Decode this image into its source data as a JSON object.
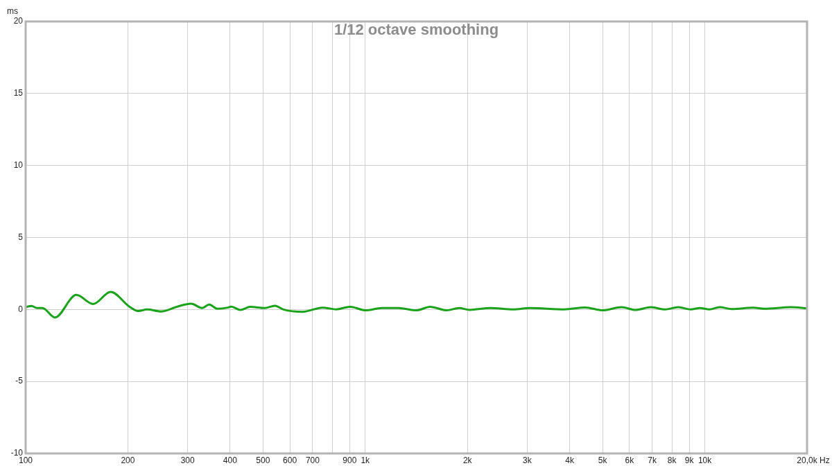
{
  "chart_data": {
    "type": "line",
    "title": "1/12 octave smoothing",
    "xlabel": "Hz",
    "ylabel": "ms",
    "log": "x",
    "grid": true,
    "legend": false,
    "marker": "none",
    "line_style": "solid",
    "xlim": [
      100,
      20000
    ],
    "ylim": [
      -10,
      20
    ],
    "xticks": [
      100,
      200,
      300,
      400,
      500,
      600,
      700,
      {
        "value": 800,
        "label": null
      },
      900,
      {
        "value": 1000,
        "label": "1k"
      },
      {
        "value": 2000,
        "label": "2k"
      },
      {
        "value": 3000,
        "label": "3k"
      },
      {
        "value": 4000,
        "label": "4k"
      },
      {
        "value": 5000,
        "label": "5k"
      },
      {
        "value": 6000,
        "label": "6k"
      },
      {
        "value": 7000,
        "label": "7k"
      },
      {
        "value": 8000,
        "label": "8k"
      },
      {
        "value": 9000,
        "label": "9k"
      },
      {
        "value": 10000,
        "label": "10k"
      },
      {
        "value": 20000,
        "label": "20,0k"
      }
    ],
    "yticks": [
      -10,
      -5,
      0,
      5,
      10,
      15,
      20
    ],
    "x": [
      100,
      104,
      108,
      112,
      122,
      141,
      158,
      178,
      202,
      214,
      228,
      250,
      280,
      307,
      331,
      347,
      367,
      394,
      403,
      429,
      458,
      506,
      542,
      574,
      654,
      749,
      822,
      902,
      1003,
      1118,
      1253,
      1416,
      1553,
      1738,
      1892,
      2030,
      2338,
      2730,
      3054,
      3858,
      4441,
      5012,
      5686,
      6245,
      6949,
      7642,
      8352,
      9089,
      9665,
      10320,
      11060,
      12000,
      13900,
      14970,
      17930,
      20000
    ],
    "series": [
      {
        "color": "#1aa31a",
        "values": [
          0.16,
          0.25,
          0.1,
          0.1,
          -0.56,
          1.01,
          0.38,
          1.22,
          0.2,
          -0.11,
          0,
          -0.14,
          0.2,
          0.4,
          0.1,
          0.34,
          0.05,
          0.13,
          0.2,
          -0.03,
          0.18,
          0.1,
          0.26,
          0,
          -0.16,
          0.13,
          0.01,
          0.19,
          -0.06,
          0.1,
          0.1,
          -0.06,
          0.19,
          -0.06,
          0.1,
          -0.03,
          0.1,
          0,
          0.1,
          0.01,
          0.14,
          -0.06,
          0.16,
          -0.03,
          0.16,
          0,
          0.16,
          0,
          0.1,
          0,
          0.16,
          0.03,
          0.13,
          0.05,
          0.16,
          0.08
        ]
      }
    ]
  }
}
